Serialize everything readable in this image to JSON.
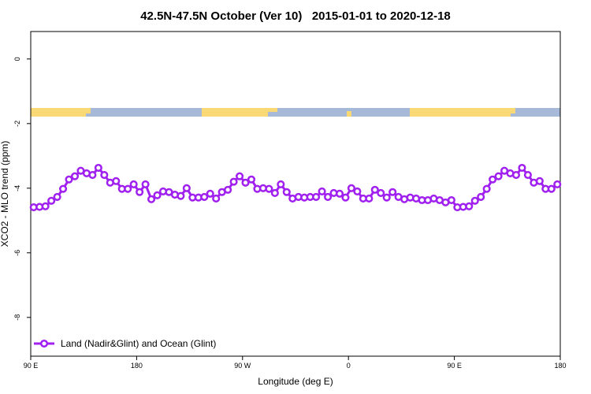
{
  "chart_data": {
    "type": "line",
    "title": "42.5N-47.5N October (Ver 10)   2015-01-01 to 2020-12-18",
    "x_label": "Longitude (deg E)",
    "y_label": "XCO2 - MLO trend (ppm)",
    "xlim": [
      90,
      540
    ],
    "ylim": [
      -9.2,
      0.85
    ],
    "xticks": [
      {
        "value": 90,
        "label": "90 E"
      },
      180,
      {
        "value": 270,
        "label": "90 W"
      },
      {
        "value": 360,
        "label": "0"
      },
      {
        "value": 450,
        "label": "90 E"
      },
      {
        "value": 540,
        "label": "180"
      }
    ],
    "yticks": [
      0,
      -2,
      -4,
      -6,
      -8
    ],
    "legend": "bottom-left",
    "x": [
      92.5,
      97.5,
      102.5,
      107.5,
      112.5,
      117.5,
      122.5,
      127.5,
      132.5,
      137.5,
      142.5,
      147.5,
      152.5,
      157.5,
      162.5,
      167.5,
      172.5,
      177.5,
      182.5,
      187.5,
      192.5,
      197.5,
      202.5,
      207.5,
      212.5,
      217.5,
      222.5,
      227.5,
      232.5,
      237.5,
      242.5,
      247.5,
      252.5,
      257.5,
      262.5,
      267.5,
      272.5,
      277.5,
      282.5,
      287.5,
      292.5,
      297.5,
      302.5,
      307.5,
      312.5,
      317.5,
      322.5,
      327.5,
      332.5,
      337.5,
      342.5,
      347.5,
      352.5,
      357.5,
      362.5,
      367.5,
      372.5,
      377.5,
      382.5,
      387.5,
      392.5,
      397.5,
      402.5,
      407.5,
      412.5,
      417.5,
      422.5,
      427.5,
      432.5,
      437.5,
      442.5,
      447.5,
      452.5,
      457.5,
      462.5,
      467.5,
      472.5,
      477.5,
      482.5,
      487.5,
      492.5,
      497.5,
      502.5,
      507.5,
      512.5,
      517.5,
      522.5,
      527.5,
      532.5,
      537.5
    ],
    "series": [
      {
        "name": "Land (Nadir&Glint) and Ocean (Glint)",
        "color": "#a020f0",
        "values": [
          -4.59,
          -4.58,
          -4.56,
          -4.39,
          -4.27,
          -4.02,
          -3.73,
          -3.63,
          -3.46,
          -3.54,
          -3.59,
          -3.37,
          -3.59,
          -3.83,
          -3.78,
          -4.02,
          -4.02,
          -3.88,
          -4.12,
          -3.88,
          -4.34,
          -4.22,
          -4.1,
          -4.12,
          -4.2,
          -4.24,
          -4.0,
          -4.29,
          -4.29,
          -4.27,
          -4.17,
          -4.32,
          -4.12,
          -4.05,
          -3.8,
          -3.63,
          -3.83,
          -3.73,
          -4.02,
          -4.0,
          -4.02,
          -4.15,
          -3.88,
          -4.12,
          -4.32,
          -4.27,
          -4.29,
          -4.27,
          -4.27,
          -4.1,
          -4.27,
          -4.15,
          -4.17,
          -4.29,
          -4.0,
          -4.1,
          -4.32,
          -4.32,
          -4.05,
          -4.15,
          -4.29,
          -4.12,
          -4.27,
          -4.34,
          -4.29,
          -4.32,
          -4.37,
          -4.37,
          -4.32,
          -4.37,
          -4.44,
          -4.37,
          -4.59,
          -4.58,
          -4.56,
          -4.39,
          -4.27,
          -4.02,
          -3.73,
          -3.63,
          -3.46,
          -3.54,
          -3.59,
          -3.37,
          -3.59,
          -3.83,
          -3.78,
          -4.02,
          -4.02,
          -3.88
        ]
      }
    ]
  }
}
